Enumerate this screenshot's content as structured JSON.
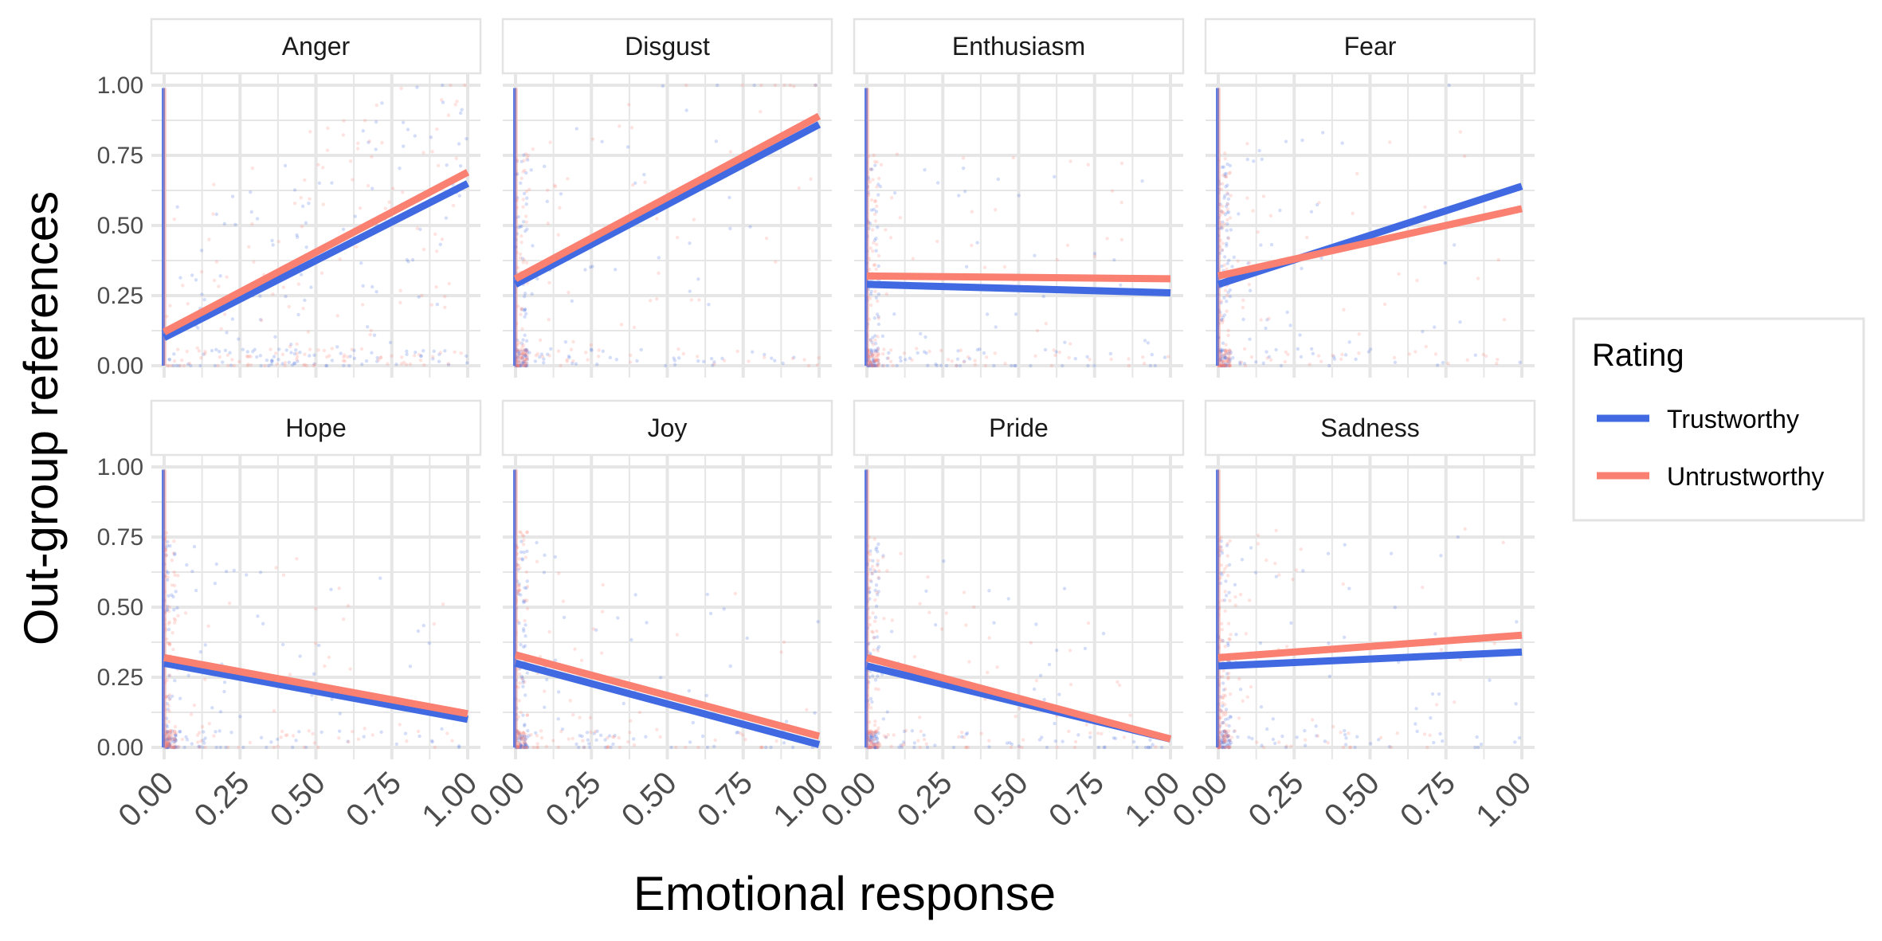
{
  "chart_data": {
    "type": "scatter",
    "layout": "faceted 2x4 grid with fitted regression lines",
    "xlabel": "Emotional response",
    "ylabel": "Out-group references",
    "xlim": [
      0,
      1
    ],
    "ylim": [
      0,
      1
    ],
    "x_ticks": [
      "0.00",
      "0.25",
      "0.50",
      "0.75",
      "1.00"
    ],
    "y_ticks": [
      "0.00",
      "0.25",
      "0.50",
      "0.75",
      "1.00"
    ],
    "grid": true,
    "legend": {
      "title": "Rating",
      "position": "right",
      "entries": [
        {
          "name": "Trustworthy",
          "color": "#4169E1"
        },
        {
          "name": "Untrustworthy",
          "color": "#FA8072"
        }
      ]
    },
    "facets": [
      {
        "label": "Anger",
        "lines": {
          "Trustworthy": [
            [
              0,
              0.1
            ],
            [
              1,
              0.65
            ]
          ],
          "Untrustworthy": [
            [
              0,
              0.12
            ],
            [
              1,
              0.69
            ]
          ]
        }
      },
      {
        "label": "Disgust",
        "lines": {
          "Trustworthy": [
            [
              0,
              0.29
            ],
            [
              1,
              0.86
            ]
          ],
          "Untrustworthy": [
            [
              0,
              0.31
            ],
            [
              1,
              0.89
            ]
          ]
        }
      },
      {
        "label": "Enthusiasm",
        "lines": {
          "Trustworthy": [
            [
              0,
              0.29
            ],
            [
              1,
              0.26
            ]
          ],
          "Untrustworthy": [
            [
              0,
              0.32
            ],
            [
              1,
              0.31
            ]
          ]
        }
      },
      {
        "label": "Fear",
        "lines": {
          "Trustworthy": [
            [
              0,
              0.29
            ],
            [
              1,
              0.64
            ]
          ],
          "Untrustworthy": [
            [
              0,
              0.32
            ],
            [
              1,
              0.56
            ]
          ]
        }
      },
      {
        "label": "Hope",
        "lines": {
          "Trustworthy": [
            [
              0,
              0.3
            ],
            [
              1,
              0.1
            ]
          ],
          "Untrustworthy": [
            [
              0,
              0.32
            ],
            [
              1,
              0.12
            ]
          ]
        }
      },
      {
        "label": "Joy",
        "lines": {
          "Trustworthy": [
            [
              0,
              0.3
            ],
            [
              1,
              0.01
            ]
          ],
          "Untrustworthy": [
            [
              0,
              0.33
            ],
            [
              1,
              0.04
            ]
          ]
        }
      },
      {
        "label": "Pride",
        "lines": {
          "Trustworthy": [
            [
              0,
              0.29
            ],
            [
              1,
              0.03
            ]
          ],
          "Untrustworthy": [
            [
              0,
              0.32
            ],
            [
              1,
              0.03
            ]
          ]
        }
      },
      {
        "label": "Sadness",
        "lines": {
          "Trustworthy": [
            [
              0,
              0.29
            ],
            [
              1,
              0.34
            ]
          ],
          "Untrustworthy": [
            [
              0,
              0.32
            ],
            [
              1,
              0.4
            ]
          ]
        }
      }
    ]
  }
}
